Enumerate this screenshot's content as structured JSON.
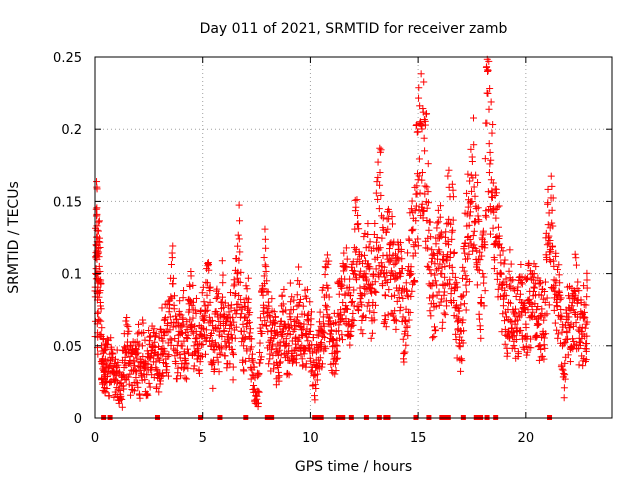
{
  "chart_data": {
    "type": "scatter",
    "title": "Day 011 of 2021, SRMTID for receiver zamb",
    "xlabel": "GPS time / hours",
    "ylabel": "SRMTID / TECUs",
    "xlim": [
      0,
      24
    ],
    "ylim": [
      0,
      0.25
    ],
    "xticks": [
      0,
      5,
      10,
      15,
      20
    ],
    "xtick_labels": [
      "0",
      "5",
      "10",
      "15",
      "20"
    ],
    "yticks": [
      0,
      0.05,
      0.1,
      0.15,
      0.2,
      0.25
    ],
    "ytick_labels": [
      "0",
      "0.05",
      "0.1",
      "0.15",
      "0.2",
      "0.25"
    ],
    "grid": true,
    "marker": "+",
    "series": [
      {
        "name": "SRMTID",
        "color": "#ff0000",
        "points": [
          [
            0.0,
            0.088
          ],
          [
            0.05,
            0.12
          ],
          [
            0.08,
            0.14
          ],
          [
            0.1,
            0.13
          ],
          [
            0.12,
            0.059
          ],
          [
            0.15,
            0.095
          ],
          [
            0.2,
            0.105
          ],
          [
            0.25,
            0.08
          ],
          [
            0.3,
            0.05
          ],
          [
            0.35,
            0.04
          ],
          [
            0.4,
            0.033
          ],
          [
            0.45,
            0.03
          ],
          [
            0.5,
            0.035
          ],
          [
            0.6,
            0.04
          ],
          [
            0.7,
            0.031
          ],
          [
            0.8,
            0.045
          ],
          [
            0.9,
            0.025
          ],
          [
            1.0,
            0.035
          ],
          [
            1.1,
            0.02
          ],
          [
            1.2,
            0.015
          ],
          [
            1.3,
            0.03
          ],
          [
            1.4,
            0.042
          ],
          [
            1.5,
            0.05
          ],
          [
            1.6,
            0.038
          ],
          [
            1.7,
            0.033
          ],
          [
            1.8,
            0.04
          ],
          [
            1.9,
            0.028
          ],
          [
            2.0,
            0.045
          ],
          [
            2.1,
            0.033
          ],
          [
            2.2,
            0.05
          ],
          [
            2.3,
            0.036
          ],
          [
            2.4,
            0.03
          ],
          [
            2.5,
            0.042
          ],
          [
            2.6,
            0.035
          ],
          [
            2.7,
            0.05
          ],
          [
            2.8,
            0.045
          ],
          [
            2.9,
            0.03
          ],
          [
            3.0,
            0.04
          ],
          [
            3.1,
            0.055
          ],
          [
            3.2,
            0.048
          ],
          [
            3.3,
            0.06
          ],
          [
            3.4,
            0.052
          ],
          [
            3.5,
            0.07
          ],
          [
            3.6,
            0.093
          ],
          [
            3.7,
            0.055
          ],
          [
            3.8,
            0.045
          ],
          [
            3.9,
            0.06
          ],
          [
            4.0,
            0.05
          ],
          [
            4.1,
            0.065
          ],
          [
            4.2,
            0.04
          ],
          [
            4.3,
            0.055
          ],
          [
            4.4,
            0.068
          ],
          [
            4.5,
            0.078
          ],
          [
            4.6,
            0.05
          ],
          [
            4.7,
            0.06
          ],
          [
            4.8,
            0.045
          ],
          [
            4.9,
            0.058
          ],
          [
            5.0,
            0.07
          ],
          [
            5.1,
            0.055
          ],
          [
            5.2,
            0.085
          ],
          [
            5.3,
            0.09
          ],
          [
            5.4,
            0.05
          ],
          [
            5.5,
            0.04
          ],
          [
            5.6,
            0.062
          ],
          [
            5.7,
            0.07
          ],
          [
            5.8,
            0.045
          ],
          [
            5.9,
            0.08
          ],
          [
            6.0,
            0.06
          ],
          [
            6.1,
            0.05
          ],
          [
            6.2,
            0.058
          ],
          [
            6.3,
            0.065
          ],
          [
            6.4,
            0.045
          ],
          [
            6.5,
            0.085
          ],
          [
            6.6,
            0.1
          ],
          [
            6.7,
            0.124
          ],
          [
            6.8,
            0.06
          ],
          [
            6.9,
            0.05
          ],
          [
            7.0,
            0.07
          ],
          [
            7.1,
            0.08
          ],
          [
            7.2,
            0.055
          ],
          [
            7.3,
            0.04
          ],
          [
            7.4,
            0.02
          ],
          [
            7.5,
            0.01
          ],
          [
            7.6,
            0.03
          ],
          [
            7.7,
            0.06
          ],
          [
            7.8,
            0.085
          ],
          [
            7.9,
            0.106
          ],
          [
            8.0,
            0.07
          ],
          [
            8.1,
            0.05
          ],
          [
            8.2,
            0.06
          ],
          [
            8.3,
            0.055
          ],
          [
            8.4,
            0.045
          ],
          [
            8.5,
            0.035
          ],
          [
            8.6,
            0.05
          ],
          [
            8.7,
            0.06
          ],
          [
            8.8,
            0.065
          ],
          [
            8.9,
            0.045
          ],
          [
            9.0,
            0.05
          ],
          [
            9.1,
            0.075
          ],
          [
            9.2,
            0.06
          ],
          [
            9.3,
            0.055
          ],
          [
            9.4,
            0.07
          ],
          [
            9.5,
            0.08
          ],
          [
            9.6,
            0.05
          ],
          [
            9.7,
            0.065
          ],
          [
            9.8,
            0.058
          ],
          [
            9.9,
            0.072
          ],
          [
            10.0,
            0.06
          ],
          [
            10.1,
            0.045
          ],
          [
            10.2,
            0.03
          ],
          [
            10.3,
            0.035
          ],
          [
            10.4,
            0.05
          ],
          [
            10.5,
            0.06
          ],
          [
            10.6,
            0.07
          ],
          [
            10.7,
            0.078
          ],
          [
            10.8,
            0.09
          ],
          [
            10.9,
            0.065
          ],
          [
            11.0,
            0.055
          ],
          [
            11.1,
            0.05
          ],
          [
            11.2,
            0.06
          ],
          [
            11.3,
            0.07
          ],
          [
            11.4,
            0.075
          ],
          [
            11.5,
            0.08
          ],
          [
            11.6,
            0.085
          ],
          [
            11.7,
            0.09
          ],
          [
            11.8,
            0.065
          ],
          [
            11.9,
            0.08
          ],
          [
            12.0,
            0.1
          ],
          [
            12.1,
            0.115
          ],
          [
            12.2,
            0.11
          ],
          [
            12.3,
            0.09
          ],
          [
            12.4,
            0.085
          ],
          [
            12.5,
            0.1
          ],
          [
            12.6,
            0.095
          ],
          [
            12.7,
            0.105
          ],
          [
            12.8,
            0.09
          ],
          [
            12.9,
            0.08
          ],
          [
            13.0,
            0.11
          ],
          [
            13.1,
            0.125
          ],
          [
            13.2,
            0.145
          ],
          [
            13.3,
            0.14
          ],
          [
            13.4,
            0.1
          ],
          [
            13.5,
            0.095
          ],
          [
            13.6,
            0.11
          ],
          [
            13.7,
            0.12
          ],
          [
            13.8,
            0.1
          ],
          [
            13.9,
            0.085
          ],
          [
            14.0,
            0.09
          ],
          [
            14.1,
            0.11
          ],
          [
            14.2,
            0.1
          ],
          [
            14.3,
            0.07
          ],
          [
            14.4,
            0.06
          ],
          [
            14.5,
            0.085
          ],
          [
            14.6,
            0.1
          ],
          [
            14.7,
            0.13
          ],
          [
            14.8,
            0.12
          ],
          [
            14.9,
            0.155
          ],
          [
            15.0,
            0.165
          ],
          [
            15.1,
            0.205
          ],
          [
            15.2,
            0.17
          ],
          [
            15.3,
            0.185
          ],
          [
            15.4,
            0.16
          ],
          [
            15.5,
            0.13
          ],
          [
            15.6,
            0.1
          ],
          [
            15.7,
            0.085
          ],
          [
            15.8,
            0.095
          ],
          [
            15.9,
            0.11
          ],
          [
            16.0,
            0.115
          ],
          [
            16.1,
            0.1
          ],
          [
            16.2,
            0.085
          ],
          [
            16.3,
            0.11
          ],
          [
            16.4,
            0.135
          ],
          [
            16.5,
            0.115
          ],
          [
            16.6,
            0.13
          ],
          [
            16.7,
            0.09
          ],
          [
            16.8,
            0.07
          ],
          [
            16.9,
            0.05
          ],
          [
            17.0,
            0.06
          ],
          [
            17.1,
            0.085
          ],
          [
            17.2,
            0.11
          ],
          [
            17.3,
            0.125
          ],
          [
            17.4,
            0.14
          ],
          [
            17.5,
            0.15
          ],
          [
            17.6,
            0.16
          ],
          [
            17.7,
            0.145
          ],
          [
            17.8,
            0.11
          ],
          [
            17.9,
            0.08
          ],
          [
            18.0,
            0.1
          ],
          [
            18.1,
            0.12
          ],
          [
            18.2,
            0.225
          ],
          [
            18.3,
            0.19
          ],
          [
            18.4,
            0.165
          ],
          [
            18.5,
            0.145
          ],
          [
            18.6,
            0.125
          ],
          [
            18.7,
            0.12
          ],
          [
            18.8,
            0.1
          ],
          [
            18.9,
            0.09
          ],
          [
            19.0,
            0.085
          ],
          [
            19.1,
            0.07
          ],
          [
            19.2,
            0.08
          ],
          [
            19.3,
            0.09
          ],
          [
            19.4,
            0.075
          ],
          [
            19.5,
            0.065
          ],
          [
            19.6,
            0.06
          ],
          [
            19.7,
            0.07
          ],
          [
            19.8,
            0.08
          ],
          [
            19.9,
            0.078
          ],
          [
            20.0,
            0.065
          ],
          [
            20.1,
            0.075
          ],
          [
            20.2,
            0.08
          ],
          [
            20.3,
            0.07
          ],
          [
            20.4,
            0.09
          ],
          [
            20.5,
            0.075
          ],
          [
            20.6,
            0.065
          ],
          [
            20.7,
            0.07
          ],
          [
            20.8,
            0.06
          ],
          [
            20.9,
            0.08
          ],
          [
            21.0,
            0.12
          ],
          [
            21.1,
            0.115
          ],
          [
            21.2,
            0.135
          ],
          [
            21.3,
            0.105
          ],
          [
            21.4,
            0.095
          ],
          [
            21.5,
            0.085
          ],
          [
            21.6,
            0.07
          ],
          [
            21.7,
            0.05
          ],
          [
            21.8,
            0.03
          ],
          [
            21.9,
            0.06
          ],
          [
            22.0,
            0.07
          ],
          [
            22.1,
            0.065
          ],
          [
            22.2,
            0.075
          ],
          [
            22.3,
            0.085
          ],
          [
            22.4,
            0.07
          ],
          [
            22.5,
            0.06
          ],
          [
            22.6,
            0.055
          ],
          [
            22.7,
            0.07
          ],
          [
            22.8,
            0.065
          ],
          [
            22.85,
            0.09
          ]
        ]
      }
    ],
    "zero_markers_x": [
      0.4,
      0.7,
      2.9,
      4.9,
      5.8,
      7.0,
      8.0,
      8.2,
      10.2,
      10.3,
      10.5,
      11.3,
      11.5,
      11.9,
      12.6,
      13.2,
      13.5,
      13.6,
      14.9,
      15.5,
      16.1,
      16.2,
      16.4,
      17.1,
      17.7,
      17.9,
      18.2,
      18.6,
      21.1
    ]
  }
}
